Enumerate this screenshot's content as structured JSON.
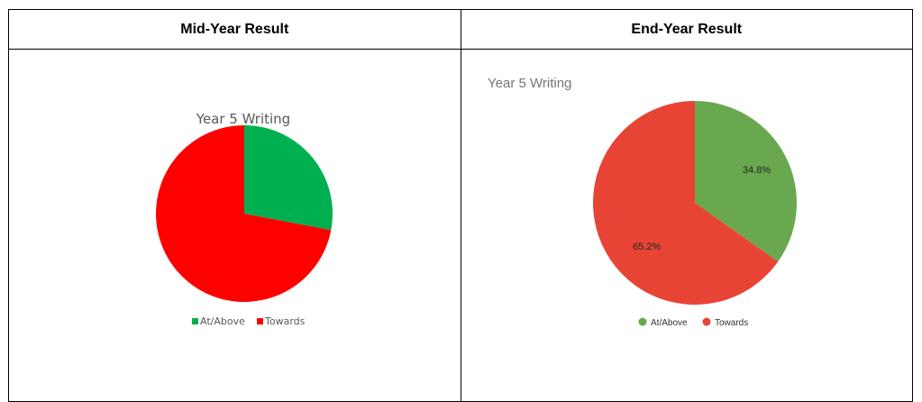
{
  "table": {
    "headers": [
      "Mid-Year Result",
      "End-Year Result"
    ]
  },
  "colors": {
    "mid_at_above": "#00b050",
    "mid_towards": "#ff0000",
    "end_at_above": "#6aa84f",
    "end_towards": "#e84436"
  },
  "chart_data": [
    {
      "type": "pie",
      "title": "Year 5 Writing",
      "categories": [
        "At/Above",
        "Towards"
      ],
      "values": [
        28,
        72
      ],
      "data_labels": [],
      "legend_position": "bottom",
      "legend_marker": "square"
    },
    {
      "type": "pie",
      "title": "Year 5 Writing",
      "categories": [
        "At/Above",
        "Towards"
      ],
      "values": [
        34.8,
        65.2
      ],
      "data_labels": [
        "34.8%",
        "65.2%"
      ],
      "legend_position": "bottom",
      "legend_marker": "circle"
    }
  ]
}
